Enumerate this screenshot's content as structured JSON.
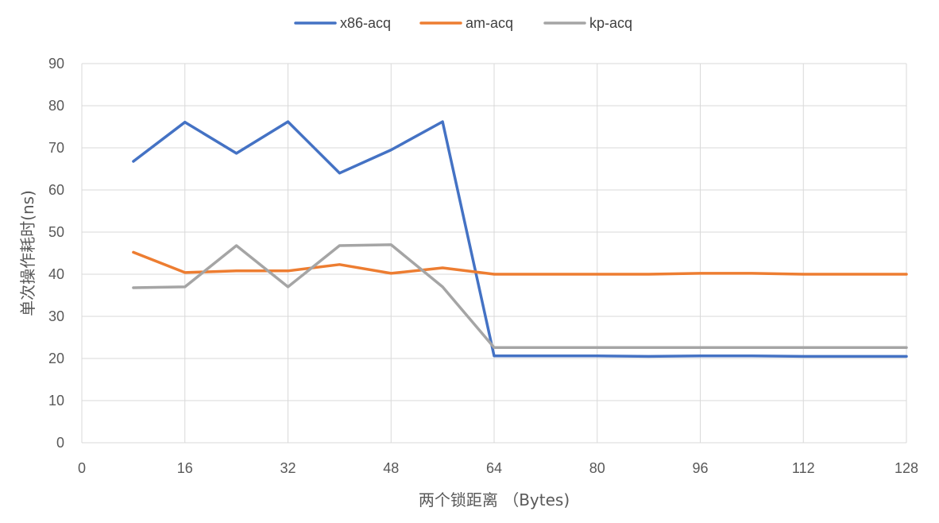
{
  "chart_data": {
    "type": "line",
    "xlabel": "两个锁距离 （Bytes)",
    "ylabel": "单次操作耗时(ns)",
    "xlim": [
      0,
      128
    ],
    "ylim": [
      0,
      90
    ],
    "x_ticks": [
      0,
      16,
      32,
      48,
      64,
      80,
      96,
      112,
      128
    ],
    "y_ticks": [
      0,
      10,
      20,
      30,
      40,
      50,
      60,
      70,
      80,
      90
    ],
    "grid": true,
    "legend_position": "top-center",
    "x": [
      8,
      16,
      24,
      32,
      40,
      48,
      56,
      64,
      72,
      80,
      88,
      96,
      104,
      112,
      120,
      128
    ],
    "series": [
      {
        "name": "x86-acq",
        "color": "#4472c4",
        "values": [
          66.8,
          76.1,
          68.7,
          76.2,
          64.0,
          69.5,
          76.2,
          20.6,
          20.6,
          20.6,
          20.5,
          20.6,
          20.6,
          20.5,
          20.5,
          20.5
        ]
      },
      {
        "name": "am-acq",
        "color": "#ed7d31",
        "values": [
          45.2,
          40.4,
          40.8,
          40.8,
          42.3,
          40.2,
          41.5,
          40.0,
          40.0,
          40.0,
          40.0,
          40.2,
          40.2,
          40.0,
          40.0,
          40.0
        ]
      },
      {
        "name": "kp-acq",
        "color": "#a5a5a5",
        "values": [
          36.8,
          37.0,
          46.8,
          37.0,
          46.8,
          47.0,
          37.0,
          22.6,
          22.6,
          22.6,
          22.6,
          22.6,
          22.6,
          22.6,
          22.6,
          22.6
        ]
      }
    ]
  }
}
